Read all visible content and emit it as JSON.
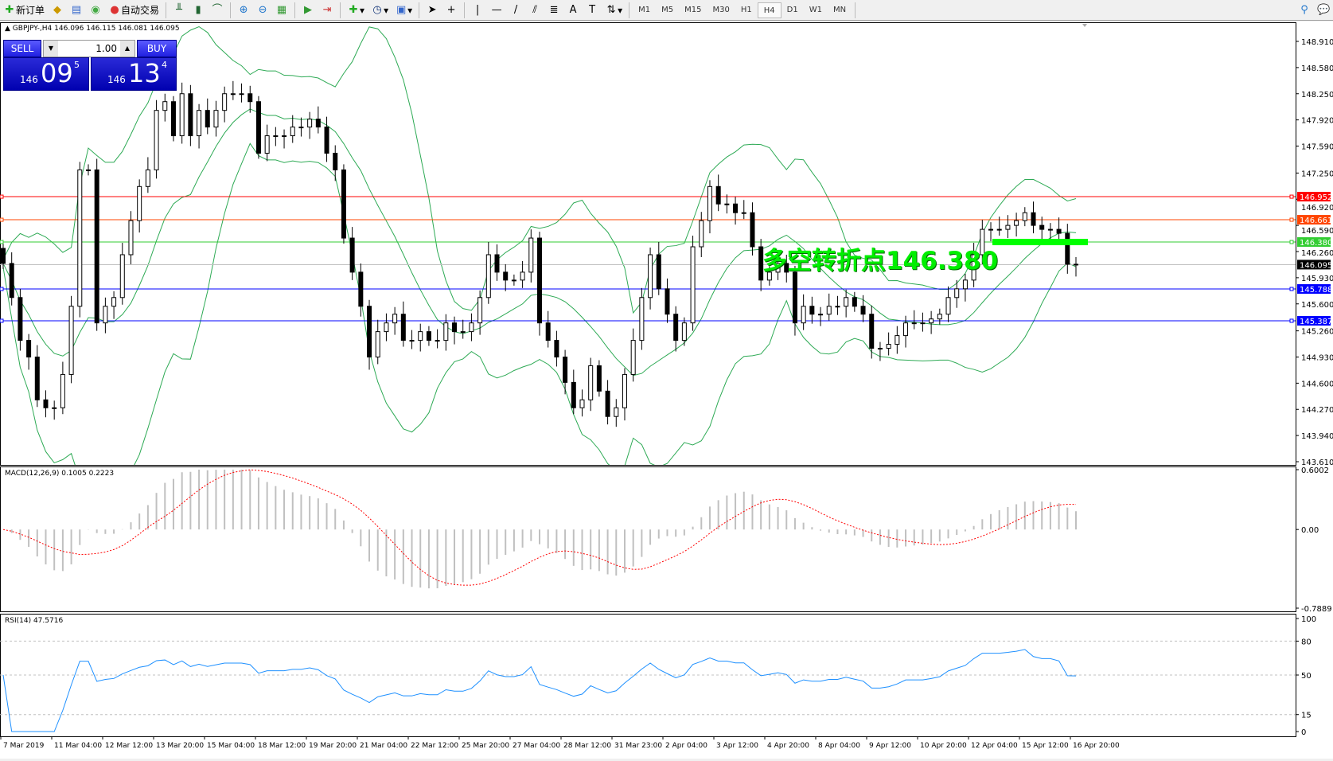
{
  "toolbar": {
    "new_order": "新订单",
    "auto_trading": "自动交易",
    "timeframes": [
      "M1",
      "M5",
      "M15",
      "M30",
      "H1",
      "H4",
      "D1",
      "W1",
      "MN"
    ],
    "active_timeframe": "H4"
  },
  "chart": {
    "title": "GBPJPY-,H4  146.096 146.115 146.081 146.095",
    "trade_panel": {
      "sell": "SELL",
      "buy": "BUY",
      "lot": "1.00",
      "bid_big": "09",
      "bid_small": "146",
      "bid_sup": "5",
      "ask_big": "13",
      "ask_small": "146",
      "ask_sup": "4"
    },
    "annotation": "多空转折点146.380",
    "price_ticks": [
      "148.910",
      "148.580",
      "148.250",
      "147.920",
      "147.590",
      "147.250",
      "146.920",
      "146.590",
      "146.260",
      "145.930",
      "145.600",
      "145.260",
      "144.930",
      "144.600",
      "144.270",
      "143.940",
      "143.610"
    ],
    "hlines": [
      {
        "label": "146.952",
        "price": 146.952,
        "color": "#ff0000"
      },
      {
        "label": "146.661",
        "price": 146.661,
        "color": "#ff4500"
      },
      {
        "label": "146.380",
        "price": 146.38,
        "color": "#32cd32"
      },
      {
        "label": "146.095",
        "price": 146.095,
        "color": "#000000"
      },
      {
        "label": "145.788",
        "price": 145.788,
        "color": "#0000ff"
      },
      {
        "label": "145.387",
        "price": 145.387,
        "color": "#0000ff"
      }
    ],
    "band_color": "#2eaa55",
    "price_range": [
      143.61,
      148.91
    ],
    "closes": [
      146.11,
      145.68,
      145.14,
      144.93,
      144.39,
      144.29,
      144.29,
      144.71,
      145.57,
      147.29,
      147.29,
      145.36,
      145.57,
      145.68,
      146.22,
      146.65,
      147.08,
      147.29,
      148.04,
      148.15,
      147.72,
      148.25,
      147.72,
      148.04,
      147.83,
      148.04,
      148.25,
      148.25,
      148.25,
      148.15,
      147.5,
      147.72,
      147.72,
      147.72,
      147.83,
      147.83,
      147.93,
      147.83,
      147.5,
      147.29,
      146.43,
      146.0,
      145.57,
      144.93,
      145.25,
      145.36,
      145.47,
      145.14,
      145.14,
      145.25,
      145.14,
      145.14,
      145.36,
      145.25,
      145.25,
      145.36,
      145.68,
      146.22,
      146.0,
      145.9,
      145.9,
      146.0,
      146.43,
      145.36,
      145.14,
      144.93,
      144.61,
      144.29,
      144.39,
      144.82,
      144.5,
      144.18,
      144.29,
      144.71,
      145.14,
      145.68,
      146.22,
      145.79,
      145.47,
      145.14,
      145.36,
      146.32,
      146.65,
      147.08,
      146.86,
      146.86,
      146.75,
      146.75,
      146.32,
      145.9,
      146.0,
      146.11,
      146.0,
      145.36,
      145.57,
      145.47,
      145.47,
      145.57,
      145.57,
      145.68,
      145.57,
      145.47,
      145.04,
      145.04,
      145.09,
      145.2,
      145.36,
      145.36,
      145.36,
      145.41,
      145.47,
      145.68,
      145.79,
      145.9,
      146.22,
      146.54,
      146.54,
      146.54,
      146.59,
      146.65,
      146.75,
      146.59,
      146.54,
      146.54,
      146.49,
      146.1,
      146.095
    ]
  },
  "macd": {
    "title": "MACD(12,26,9) 0.1005 0.2223",
    "ticks": [
      "0.6002",
      "0.00",
      "-0.7889"
    ],
    "range": [
      -0.7889,
      0.6002
    ],
    "signal_color": "#ff0000",
    "hist_color": "#c0c0c0"
  },
  "rsi": {
    "title": "RSI(14) 47.5716",
    "ticks": [
      "100",
      "80",
      "50",
      "15",
      "0"
    ],
    "levels": [
      80,
      50,
      15
    ],
    "color": "#1e90ff"
  },
  "time_labels": [
    "7 Mar 2019",
    "11 Mar 04:00",
    "12 Mar 12:00",
    "13 Mar 20:00",
    "15 Mar 04:00",
    "18 Mar 12:00",
    "19 Mar 20:00",
    "21 Mar 04:00",
    "22 Mar 12:00",
    "25 Mar 20:00",
    "27 Mar 04:00",
    "28 Mar 12:00",
    "31 Mar 23:00",
    "2 Apr 04:00",
    "3 Apr 12:00",
    "4 Apr 20:00",
    "8 Apr 04:00",
    "9 Apr 12:00",
    "10 Apr 20:00",
    "12 Apr 04:00",
    "15 Apr 12:00",
    "16 Apr 20:00"
  ]
}
